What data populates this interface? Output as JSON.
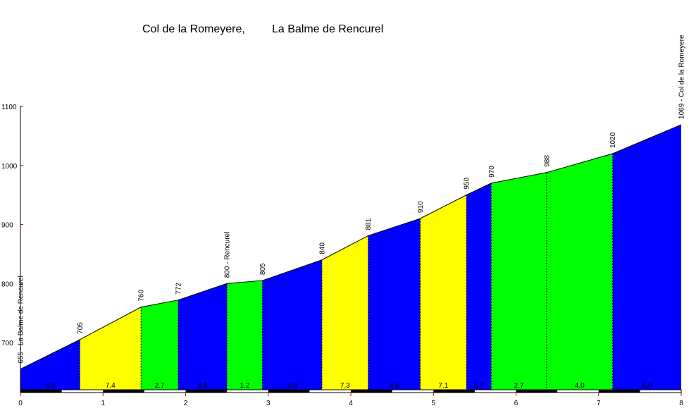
{
  "chart_data": {
    "type": "area",
    "title_left": "Col de la Romeyere,",
    "title_right": "La Balme de Rencurel",
    "xlabel": "",
    "ylabel": "",
    "xlim": [
      0,
      8
    ],
    "ylim": [
      620,
      1100
    ],
    "x_ticks": [
      0,
      1,
      2,
      3,
      4,
      5,
      6,
      7,
      8
    ],
    "x_tick_labels": [
      "0",
      "1",
      "2",
      "3",
      "4",
      "5",
      "6",
      "7",
      "8"
    ],
    "y_ticks": [
      700,
      800,
      900,
      1000,
      1100
    ],
    "y_tick_labels": [
      "700",
      "800",
      "900",
      "1000",
      "1100"
    ],
    "points": [
      {
        "x": 0.0,
        "y": 655,
        "label": "655 - La Balme de Rencurel"
      },
      {
        "x": 0.72,
        "y": 705,
        "label": "705"
      },
      {
        "x": 1.46,
        "y": 760,
        "label": "760"
      },
      {
        "x": 1.91,
        "y": 772,
        "label": "772"
      },
      {
        "x": 2.5,
        "y": 800,
        "label": "800 - Rencurel"
      },
      {
        "x": 2.93,
        "y": 805,
        "label": "805"
      },
      {
        "x": 3.65,
        "y": 840,
        "label": "840"
      },
      {
        "x": 4.21,
        "y": 881,
        "label": "881"
      },
      {
        "x": 4.84,
        "y": 910,
        "label": "910"
      },
      {
        "x": 5.4,
        "y": 950,
        "label": "950"
      },
      {
        "x": 5.7,
        "y": 970,
        "label": "970"
      },
      {
        "x": 6.37,
        "y": 988,
        "label": "988"
      },
      {
        "x": 7.17,
        "y": 1020,
        "label": "1020"
      },
      {
        "x": 8.0,
        "y": 1069,
        "label": "1069 - Col de la Romeyere"
      }
    ],
    "segments": [
      {
        "grade": "6.9",
        "color": "#0000ff"
      },
      {
        "grade": "7.4",
        "color": "#ffff00"
      },
      {
        "grade": "2.7",
        "color": "#00ff00"
      },
      {
        "grade": "4.8",
        "color": "#0000ff"
      },
      {
        "grade": "1.2",
        "color": "#00ff00"
      },
      {
        "grade": "4.8",
        "color": "#0000ff"
      },
      {
        "grade": "7.3",
        "color": "#ffff00"
      },
      {
        "grade": "4.6",
        "color": "#0000ff"
      },
      {
        "grade": "7.1",
        "color": "#ffff00"
      },
      {
        "grade": "6.7",
        "color": "#0000ff"
      },
      {
        "grade": "2.7",
        "color": "#00ff00"
      },
      {
        "grade": "4.0",
        "color": "#00ff00"
      },
      {
        "grade": "6.0",
        "color": "#0000ff"
      }
    ],
    "grid": false,
    "legend": "none"
  },
  "colors": {
    "axis": "#000000",
    "tick": "#cc0000",
    "scale_dark": "#000000",
    "scale_light": "#ffffff"
  }
}
